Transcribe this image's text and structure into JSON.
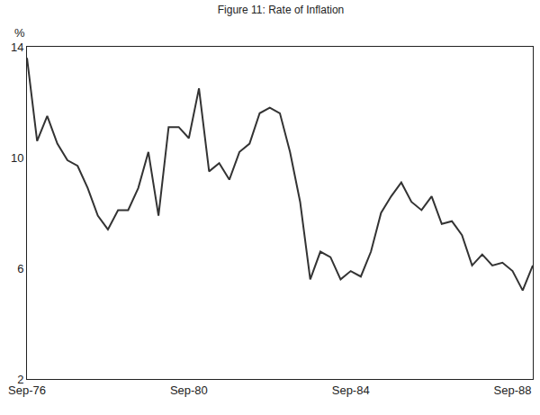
{
  "chart_data": {
    "type": "line",
    "title": "Figure 11: Rate of Inflation",
    "ylabel": "%",
    "categories": [
      "Sep-76",
      null,
      null,
      null,
      null,
      null,
      null,
      null,
      null,
      null,
      null,
      null,
      null,
      null,
      null,
      null,
      "Sep-80",
      null,
      null,
      null,
      null,
      null,
      null,
      null,
      null,
      null,
      null,
      null,
      null,
      null,
      null,
      null,
      "Sep-84",
      null,
      null,
      null,
      null,
      null,
      null,
      null,
      null,
      null,
      null,
      null,
      null,
      null,
      null,
      null,
      "Sep-88",
      null,
      null
    ],
    "values": [
      13.6,
      10.6,
      11.5,
      10.5,
      9.9,
      9.7,
      8.9,
      7.9,
      7.4,
      8.1,
      8.1,
      8.9,
      10.2,
      7.9,
      11.1,
      11.1,
      10.7,
      12.5,
      9.5,
      9.8,
      9.2,
      10.2,
      10.5,
      11.6,
      11.8,
      11.6,
      10.2,
      8.4,
      5.6,
      6.6,
      6.4,
      5.6,
      5.9,
      5.7,
      6.6,
      8.0,
      8.6,
      9.1,
      8.4,
      8.1,
      8.6,
      7.6,
      7.7,
      7.2,
      6.1,
      6.5,
      6.1,
      6.2,
      5.9,
      5.2,
      6.1
    ],
    "color": "#333333",
    "ylim": [
      2,
      14
    ],
    "yticks": [
      2,
      6,
      10,
      14
    ],
    "grid": false
  }
}
